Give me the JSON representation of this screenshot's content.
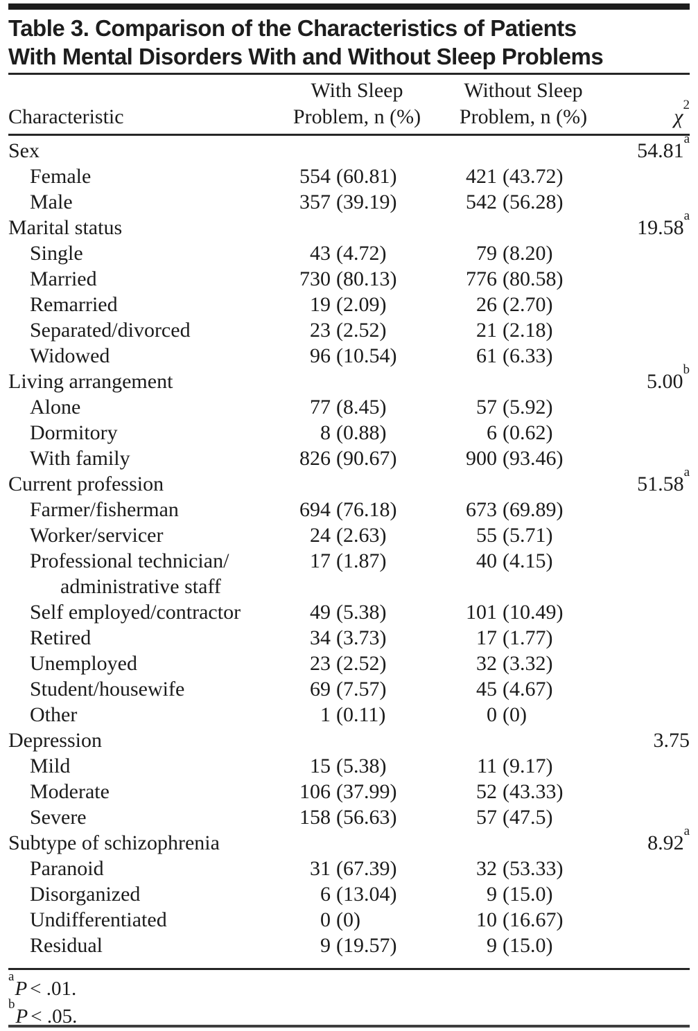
{
  "table": {
    "title_line1": "Table 3. Comparison of the Characteristics of Patients",
    "title_line2": "With Mental Disorders With and Without Sleep Problems",
    "columns": {
      "characteristic": "Characteristic",
      "with_sleep_line1": "With Sleep",
      "with_sleep_line2": "Problem, n (%)",
      "without_sleep_line1": "Without Sleep",
      "without_sleep_line2": "Problem, n (%)",
      "chi_base": "χ",
      "chi_sup": "2"
    },
    "rows": [
      {
        "label": "Sex",
        "indent": 0,
        "with_sleep": "",
        "without_sleep": "",
        "chi2": "54.81",
        "chi2_sup": "a"
      },
      {
        "label": "Female",
        "indent": 1,
        "with_sleep": "554 (60.81)",
        "without_sleep": "421 (43.72)",
        "chi2": "",
        "chi2_sup": ""
      },
      {
        "label": "Male",
        "indent": 1,
        "with_sleep": "357 (39.19)",
        "without_sleep": "542 (56.28)",
        "chi2": "",
        "chi2_sup": ""
      },
      {
        "label": "Marital status",
        "indent": 0,
        "with_sleep": "",
        "without_sleep": "",
        "chi2": "19.58",
        "chi2_sup": "a"
      },
      {
        "label": "Single",
        "indent": 1,
        "with_sleep": "43 (4.72)",
        "without_sleep": "79 (8.20)",
        "chi2": "",
        "chi2_sup": ""
      },
      {
        "label": "Married",
        "indent": 1,
        "with_sleep": "730 (80.13)",
        "without_sleep": "776 (80.58)",
        "chi2": "",
        "chi2_sup": ""
      },
      {
        "label": "Remarried",
        "indent": 1,
        "with_sleep": "19 (2.09)",
        "without_sleep": "26 (2.70)",
        "chi2": "",
        "chi2_sup": ""
      },
      {
        "label": "Separated/divorced",
        "indent": 1,
        "with_sleep": "23 (2.52)",
        "without_sleep": "21 (2.18)",
        "chi2": "",
        "chi2_sup": ""
      },
      {
        "label": "Widowed",
        "indent": 1,
        "with_sleep": "96 (10.54)",
        "without_sleep": "61 (6.33)",
        "chi2": "",
        "chi2_sup": ""
      },
      {
        "label": "Living arrangement",
        "indent": 0,
        "with_sleep": "",
        "without_sleep": "",
        "chi2": "5.00",
        "chi2_sup": "b"
      },
      {
        "label": "Alone",
        "indent": 1,
        "with_sleep": "77 (8.45)",
        "without_sleep": "57 (5.92)",
        "chi2": "",
        "chi2_sup": ""
      },
      {
        "label": "Dormitory",
        "indent": 1,
        "with_sleep": "8 (0.88)",
        "without_sleep": "6 (0.62)",
        "chi2": "",
        "chi2_sup": ""
      },
      {
        "label": "With family",
        "indent": 1,
        "with_sleep": "826 (90.67)",
        "without_sleep": "900 (93.46)",
        "chi2": "",
        "chi2_sup": ""
      },
      {
        "label": "Current profession",
        "indent": 0,
        "with_sleep": "",
        "without_sleep": "",
        "chi2": "51.58",
        "chi2_sup": "a"
      },
      {
        "label": "Farmer/fisherman",
        "indent": 1,
        "with_sleep": "694 (76.18)",
        "without_sleep": "673 (69.89)",
        "chi2": "",
        "chi2_sup": ""
      },
      {
        "label": "Worker/servicer",
        "indent": 1,
        "with_sleep": "24 (2.63)",
        "without_sleep": "55 (5.71)",
        "chi2": "",
        "chi2_sup": ""
      },
      {
        "label": "Professional technician/",
        "label2": "administrative staff",
        "indent": 1,
        "with_sleep": "17 (1.87)",
        "without_sleep": "40 (4.15)",
        "chi2": "",
        "chi2_sup": ""
      },
      {
        "label": "Self employed/contractor",
        "indent": 1,
        "with_sleep": "49 (5.38)",
        "without_sleep": "101 (10.49)",
        "chi2": "",
        "chi2_sup": ""
      },
      {
        "label": "Retired",
        "indent": 1,
        "with_sleep": "34 (3.73)",
        "without_sleep": "17 (1.77)",
        "chi2": "",
        "chi2_sup": ""
      },
      {
        "label": "Unemployed",
        "indent": 1,
        "with_sleep": "23 (2.52)",
        "without_sleep": "32 (3.32)",
        "chi2": "",
        "chi2_sup": ""
      },
      {
        "label": "Student/housewife",
        "indent": 1,
        "with_sleep": "69 (7.57)",
        "without_sleep": "45 (4.67)",
        "chi2": "",
        "chi2_sup": ""
      },
      {
        "label": "Other",
        "indent": 1,
        "with_sleep": "1 (0.11)",
        "without_sleep": "0 (0)",
        "chi2": "",
        "chi2_sup": ""
      },
      {
        "label": "Depression",
        "indent": 0,
        "with_sleep": "",
        "without_sleep": "",
        "chi2": "3.75",
        "chi2_sup": ""
      },
      {
        "label": "Mild",
        "indent": 1,
        "with_sleep": "15 (5.38)",
        "without_sleep": "11 (9.17)",
        "chi2": "",
        "chi2_sup": ""
      },
      {
        "label": "Moderate",
        "indent": 1,
        "with_sleep": "106 (37.99)",
        "without_sleep": "52 (43.33)",
        "chi2": "",
        "chi2_sup": ""
      },
      {
        "label": "Severe",
        "indent": 1,
        "with_sleep": "158 (56.63)",
        "without_sleep": "57 (47.5)",
        "chi2": "",
        "chi2_sup": ""
      },
      {
        "label": "Subtype of schizophrenia",
        "indent": 0,
        "with_sleep": "",
        "without_sleep": "",
        "chi2": "8.92",
        "chi2_sup": "a"
      },
      {
        "label": "Paranoid",
        "indent": 1,
        "with_sleep": "31 (67.39)",
        "without_sleep": "32 (53.33)",
        "chi2": "",
        "chi2_sup": ""
      },
      {
        "label": "Disorganized",
        "indent": 1,
        "with_sleep": "6 (13.04)",
        "without_sleep": "9 (15.0)",
        "chi2": "",
        "chi2_sup": ""
      },
      {
        "label": "Undifferentiated",
        "indent": 1,
        "with_sleep": "0 (0)",
        "without_sleep": "10 (16.67)",
        "chi2": "",
        "chi2_sup": ""
      },
      {
        "label": "Residual",
        "indent": 1,
        "with_sleep": "9 (19.57)",
        "without_sleep": "9 (15.0)",
        "chi2": "",
        "chi2_sup": ""
      }
    ],
    "footnotes": [
      {
        "sup": "a",
        "p": "P",
        "rest": "< .01."
      },
      {
        "sup": "b",
        "p": "P",
        "rest": "< .05."
      }
    ]
  }
}
